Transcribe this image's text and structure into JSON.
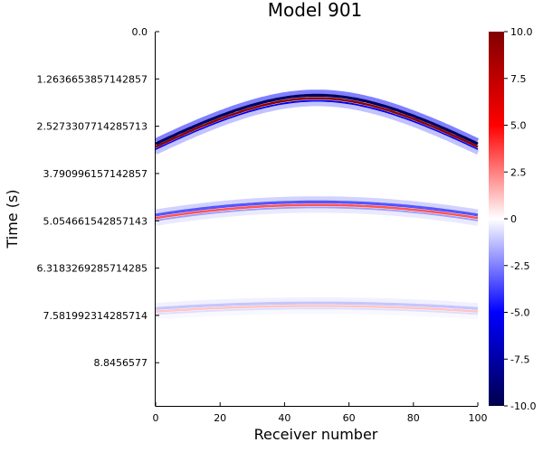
{
  "chart_data": {
    "type": "heatmap",
    "title": "Model 901",
    "xlabel": "Receiver number",
    "ylabel": "Time (s)",
    "xlim": [
      0,
      100
    ],
    "ylim": [
      0,
      10
    ],
    "x_ticks": [
      {
        "value": 0,
        "label": "0"
      },
      {
        "value": 20,
        "label": "20"
      },
      {
        "value": 40,
        "label": "40"
      },
      {
        "value": 60,
        "label": "60"
      },
      {
        "value": 80,
        "label": "80"
      },
      {
        "value": 100,
        "label": "100"
      }
    ],
    "y_ticks": [
      {
        "value": 0.0,
        "label": "0.0"
      },
      {
        "value": 1.2636653857142857,
        "label": "1.2636653857142857"
      },
      {
        "value": 2.5273307714285713,
        "label": "2.5273307714285713"
      },
      {
        "value": 3.790996157142857,
        "label": "3.790996157142857"
      },
      {
        "value": 5.054661542857143,
        "label": "5.054661542857143"
      },
      {
        "value": 6.3183269285714285,
        "label": "6.3183269285714285"
      },
      {
        "value": 7.581992314285714,
        "label": "7.581992314285714"
      },
      {
        "value": 8.8456577,
        "label": "8.8456577"
      }
    ],
    "y_inverted": true,
    "colorbar": {
      "colormap": "seismic",
      "range": [
        -10,
        10
      ],
      "colors": [
        "#00004d",
        "#0000ff",
        "#ffffff",
        "#ff0000",
        "#800000"
      ],
      "ticks": [
        {
          "value": 10,
          "label": "10.0"
        },
        {
          "value": 7.5,
          "label": "7.5"
        },
        {
          "value": 5,
          "label": "5.0"
        },
        {
          "value": 2.5,
          "label": "2.5"
        },
        {
          "value": 0,
          "label": "0"
        },
        {
          "value": -2.5,
          "label": "-2.5"
        },
        {
          "value": -5,
          "label": "-5.0"
        },
        {
          "value": -7.5,
          "label": "-7.5"
        },
        {
          "value": -10,
          "label": "-10.0"
        }
      ]
    },
    "events": [
      {
        "apex_x": 50,
        "apex_t": 1.75,
        "edge_t": 3.05,
        "amplitude": 10
      },
      {
        "apex_x": 50,
        "apex_t": 4.6,
        "edge_t": 4.95,
        "amplitude": 3.5
      },
      {
        "apex_x": 50,
        "apex_t": 7.3,
        "edge_t": 7.45,
        "amplitude": 1.2
      }
    ]
  }
}
